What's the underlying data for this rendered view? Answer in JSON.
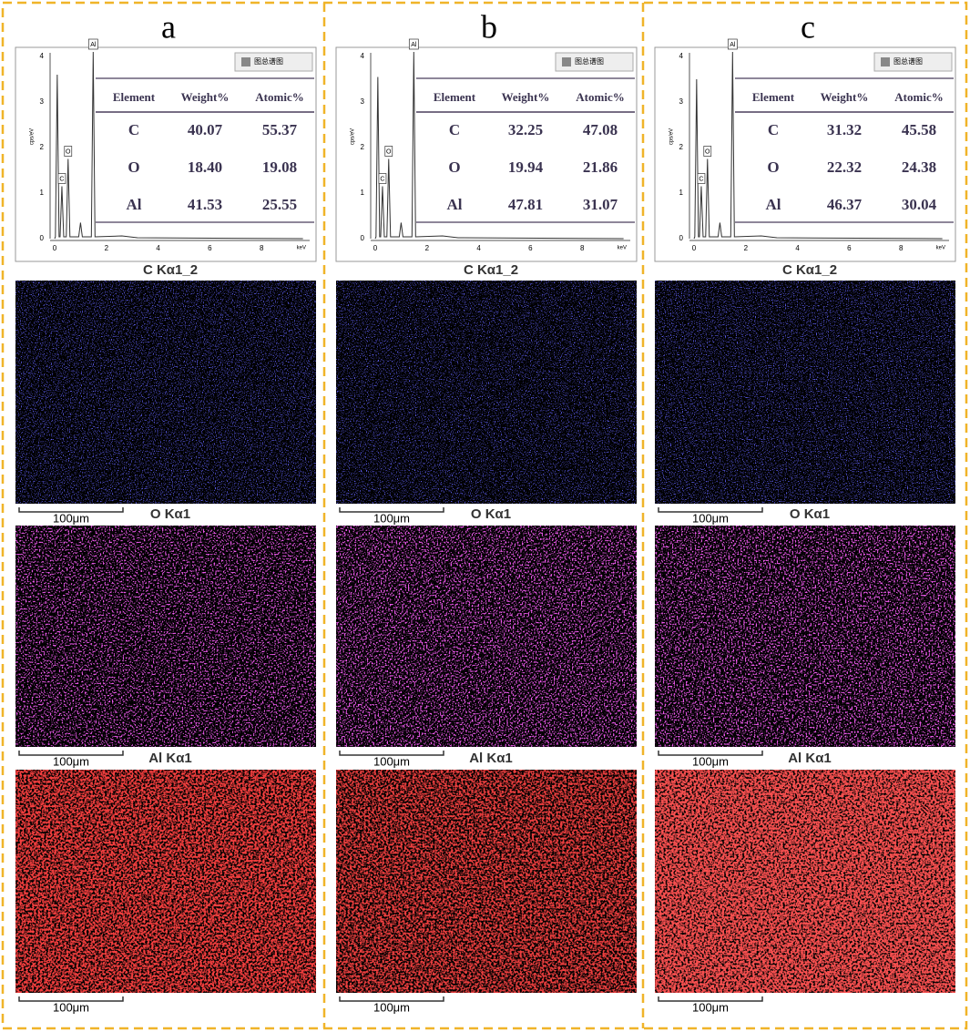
{
  "panels": [
    {
      "label": "a",
      "spectrum": {
        "y_axis_label": "cps/eV",
        "x_axis_label": "keV",
        "yticks": [
          "0",
          "1",
          "2",
          "3",
          "4"
        ],
        "xticks": [
          "0",
          "2",
          "4",
          "6",
          "8"
        ],
        "peak_labels": [
          "C",
          "O",
          "Al"
        ],
        "legend": "图总谱图"
      },
      "table": {
        "header": [
          "Element",
          "Weight%",
          "Atomic%"
        ],
        "rows": [
          [
            "C",
            "40.07",
            "55.37"
          ],
          [
            "O",
            "18.40",
            "19.08"
          ],
          [
            "Al",
            "41.53",
            "25.55"
          ]
        ]
      },
      "maps": [
        {
          "title": "C Kα1_2",
          "scale_bar": "100μm"
        },
        {
          "title": "O Kα1",
          "scale_bar": "100μm"
        },
        {
          "title": "Al Kα1",
          "scale_bar": "100μm"
        }
      ]
    },
    {
      "label": "b",
      "spectrum": {
        "y_axis_label": "cps/eV",
        "x_axis_label": "keV",
        "yticks": [
          "0",
          "1",
          "2",
          "3",
          "4"
        ],
        "xticks": [
          "0",
          "2",
          "4",
          "6",
          "8"
        ],
        "peak_labels": [
          "C",
          "O",
          "Al"
        ],
        "legend": "图总谱图"
      },
      "table": {
        "header": [
          "Element",
          "Weight%",
          "Atomic%"
        ],
        "rows": [
          [
            "C",
            "32.25",
            "47.08"
          ],
          [
            "O",
            "19.94",
            "21.86"
          ],
          [
            "Al",
            "47.81",
            "31.07"
          ]
        ]
      },
      "maps": [
        {
          "title": "C Kα1_2",
          "scale_bar": "100μm"
        },
        {
          "title": "O Kα1",
          "scale_bar": "100μm"
        },
        {
          "title": "Al Kα1",
          "scale_bar": "100μm"
        }
      ]
    },
    {
      "label": "c",
      "spectrum": {
        "y_axis_label": "cps/eV",
        "x_axis_label": "keV",
        "yticks": [
          "0",
          "1",
          "2",
          "3",
          "4"
        ],
        "xticks": [
          "0",
          "2",
          "4",
          "6",
          "8"
        ],
        "peak_labels": [
          "C",
          "O",
          "Al"
        ],
        "legend": "图总谱图"
      },
      "table": {
        "header": [
          "Element",
          "Weight%",
          "Atomic%"
        ],
        "rows": [
          [
            "C",
            "31.32",
            "45.58"
          ],
          [
            "O",
            "22.32",
            "24.38"
          ],
          [
            "Al",
            "46.37",
            "30.04"
          ]
        ]
      },
      "maps": [
        {
          "title": "C Kα1_2",
          "scale_bar": "100μm"
        },
        {
          "title": "O Kα1",
          "scale_bar": "100μm"
        },
        {
          "title": "Al Kα1",
          "scale_bar": "100μm"
        }
      ]
    }
  ]
}
